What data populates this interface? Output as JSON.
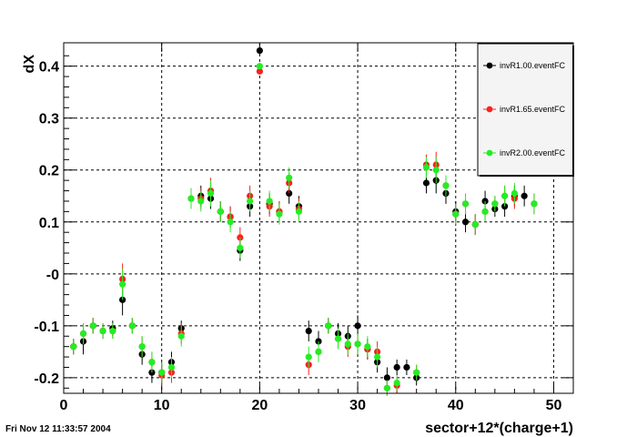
{
  "footer_timestamp": "Fri Nov 12 11:33:57 2004",
  "chart_data": {
    "type": "scatter",
    "title": "",
    "xlabel": "sector+12*(charge+1)",
    "ylabel": "dX",
    "xlim": [
      0,
      52
    ],
    "ylim": [
      -0.23,
      0.445
    ],
    "x_ticks": [
      0,
      10,
      20,
      30,
      40,
      50
    ],
    "x_tick_labels": [
      "0",
      "10",
      "20",
      "30",
      "40",
      "50"
    ],
    "y_ticks": [
      -0.2,
      -0.1,
      0.0,
      0.1,
      0.2,
      0.3,
      0.4
    ],
    "y_tick_labels": [
      "-0.2",
      "-0.1",
      "-0",
      "0.1",
      "0.2",
      "0.3",
      "0.4"
    ],
    "grid": true,
    "legend_position": "top-right",
    "x": [
      1,
      2,
      3,
      4,
      5,
      6,
      7,
      8,
      9,
      10,
      11,
      12,
      13,
      14,
      15,
      16,
      17,
      18,
      19,
      20,
      21,
      22,
      23,
      24,
      25,
      26,
      27,
      28,
      29,
      30,
      31,
      32,
      33,
      34,
      35,
      36,
      37,
      38,
      39,
      40,
      41,
      42,
      43,
      44,
      45,
      46,
      47,
      48
    ],
    "series": [
      {
        "name": "invR1.00.eventFC",
        "color": "#000000",
        "values": [
          -0.14,
          -0.13,
          -0.1,
          -0.11,
          -0.105,
          -0.05,
          -0.1,
          -0.155,
          -0.19,
          -0.19,
          -0.17,
          -0.105,
          0.15,
          0.145,
          0.12,
          0.11,
          0.045,
          0.13,
          0.43,
          0.135,
          0.12,
          0.155,
          0.13,
          -0.11,
          -0.13,
          -0.1,
          -0.115,
          -0.12,
          -0.1,
          -0.145,
          -0.17,
          -0.2,
          -0.18,
          -0.18,
          -0.2,
          0.175,
          0.18,
          0.155,
          0.12,
          0.1,
          0.095,
          0.14,
          0.125,
          0.13,
          0.15,
          0.15
        ],
        "x_override": [
          1,
          2,
          3,
          4,
          5,
          6,
          7,
          8,
          9,
          10,
          11,
          12,
          14,
          15,
          16,
          17,
          18,
          19,
          20,
          21,
          22,
          23,
          24,
          25,
          26,
          27,
          28,
          29,
          30,
          31,
          32,
          33,
          34,
          35,
          36,
          37,
          38,
          39,
          40,
          41,
          42,
          43,
          44,
          45,
          46,
          47
        ],
        "errors": [
          0.015,
          0.025,
          0.015,
          0.015,
          0.015,
          0.03,
          0.015,
          0.02,
          0.02,
          0.02,
          0.02,
          0.015,
          0.02,
          0.02,
          0.02,
          0.02,
          0.02,
          0.02,
          0.006,
          0.02,
          0.02,
          0.02,
          0.02,
          0.02,
          0.02,
          0.015,
          0.02,
          0.02,
          0.02,
          0.02,
          0.02,
          0.02,
          0.015,
          0.015,
          0.015,
          0.02,
          0.025,
          0.02,
          0.02,
          0.02,
          0.02,
          0.02,
          0.015,
          0.02,
          0.02,
          0.02
        ]
      },
      {
        "name": "invR1.65.eventFC",
        "color": "#ff2020",
        "values": [
          -0.14,
          -0.115,
          -0.1,
          -0.11,
          -0.11,
          -0.01,
          -0.1,
          -0.14,
          -0.17,
          -0.195,
          -0.19,
          -0.115,
          0.145,
          0.145,
          0.16,
          0.12,
          0.11,
          0.07,
          0.15,
          0.39,
          0.13,
          0.12,
          0.175,
          0.125,
          -0.175,
          -0.15,
          -0.1,
          -0.125,
          -0.14,
          -0.135,
          -0.145,
          -0.15,
          -0.22,
          -0.215,
          -0.19,
          0.21,
          0.21,
          0.17,
          0.115,
          0.135,
          0.095,
          0.12,
          0.135,
          0.15,
          0.145,
          0.135
        ],
        "x_override": [
          1,
          2,
          3,
          4,
          5,
          6,
          7,
          8,
          9,
          10,
          11,
          12,
          13,
          14,
          15,
          16,
          17,
          18,
          19,
          20,
          21,
          22,
          23,
          24,
          25,
          26,
          27,
          28,
          29,
          30,
          31,
          32,
          33,
          34,
          36,
          37,
          38,
          39,
          40,
          41,
          42,
          43,
          44,
          45,
          46,
          48
        ],
        "errors": [
          0.015,
          0.02,
          0.015,
          0.015,
          0.015,
          0.03,
          0.015,
          0.02,
          0.02,
          0.02,
          0.02,
          0.02,
          0.02,
          0.02,
          0.025,
          0.02,
          0.02,
          0.02,
          0.02,
          0.006,
          0.02,
          0.02,
          0.02,
          0.02,
          0.02,
          0.02,
          0.015,
          0.02,
          0.02,
          0.02,
          0.02,
          0.02,
          0.015,
          0.015,
          0.015,
          0.02,
          0.025,
          0.02,
          0.02,
          0.02,
          0.02,
          0.02,
          0.015,
          0.02,
          0.02,
          0.02
        ]
      },
      {
        "name": "invR2.00.eventFC",
        "color": "#22ee22",
        "values": [
          -0.14,
          -0.115,
          -0.1,
          -0.11,
          -0.11,
          -0.02,
          -0.1,
          -0.14,
          -0.17,
          -0.19,
          -0.18,
          -0.12,
          0.145,
          0.14,
          0.155,
          0.12,
          0.1,
          0.05,
          0.14,
          0.4,
          0.14,
          0.115,
          0.185,
          0.12,
          -0.16,
          -0.15,
          -0.1,
          -0.125,
          -0.135,
          -0.135,
          -0.14,
          -0.16,
          -0.22,
          -0.21,
          -0.19,
          0.205,
          0.2,
          0.17,
          0.115,
          0.135,
          0.095,
          0.12,
          0.135,
          0.15,
          0.155,
          0.135
        ],
        "x_override": [
          1,
          2,
          3,
          4,
          5,
          6,
          7,
          8,
          9,
          10,
          11,
          12,
          13,
          14,
          15,
          16,
          17,
          18,
          19,
          20,
          21,
          22,
          23,
          24,
          25,
          26,
          27,
          28,
          29,
          30,
          31,
          32,
          33,
          34,
          36,
          37,
          38,
          39,
          40,
          41,
          42,
          43,
          44,
          45,
          46,
          48
        ],
        "errors": [
          0.015,
          0.02,
          0.015,
          0.015,
          0.015,
          0.03,
          0.015,
          0.02,
          0.02,
          0.02,
          0.02,
          0.02,
          0.02,
          0.02,
          0.025,
          0.02,
          0.02,
          0.02,
          0.02,
          0.006,
          0.02,
          0.02,
          0.02,
          0.02,
          0.02,
          0.02,
          0.015,
          0.02,
          0.02,
          0.02,
          0.02,
          0.02,
          0.015,
          0.015,
          0.015,
          0.02,
          0.025,
          0.02,
          0.02,
          0.02,
          0.02,
          0.02,
          0.015,
          0.02,
          0.02,
          0.02
        ]
      }
    ]
  }
}
